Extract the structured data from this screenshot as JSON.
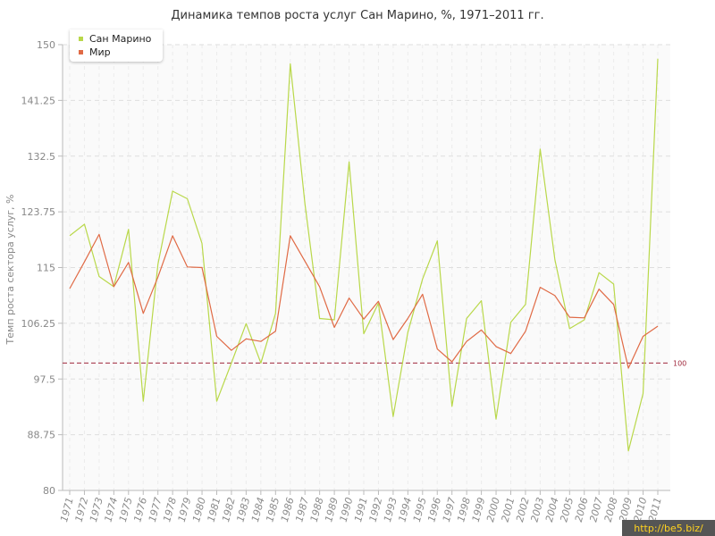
{
  "chart_data": {
    "type": "line",
    "title": "Динамика темпов роста услуг Сан Марино, %, 1971–2011 гг.",
    "ylabel": "Темп роста сектора услуг, %",
    "xlabel": "",
    "ylim": [
      80,
      150
    ],
    "yticks": [
      "80",
      "88.75",
      "97.5",
      "106.25",
      "115",
      "123.75",
      "132.5",
      "141.25",
      "150"
    ],
    "x": [
      "1971",
      "1972",
      "1973",
      "1974",
      "1975",
      "1976",
      "1977",
      "1978",
      "1979",
      "1980",
      "1981",
      "1982",
      "1983",
      "1984",
      "1985",
      "1986",
      "1987",
      "1988",
      "1989",
      "1990",
      "1991",
      "1992",
      "1993",
      "1994",
      "1995",
      "1996",
      "1997",
      "1998",
      "1999",
      "2000",
      "2001",
      "2002",
      "2003",
      "2004",
      "2005",
      "2006",
      "2007",
      "2008",
      "2009",
      "2010",
      "2011"
    ],
    "series": [
      {
        "name": "Сан Марино",
        "color": "#b9d84a",
        "values": [
          120,
          121.8,
          113.6,
          112,
          121,
          94,
          115.5,
          127,
          125.8,
          118.8,
          94,
          100,
          106.2,
          100,
          107.8,
          147,
          125,
          107,
          106.8,
          131.6,
          104.6,
          109.4,
          91.6,
          104.8,
          113.2,
          119.2,
          93.2,
          107,
          109.8,
          91.2,
          106.4,
          109.2,
          133.6,
          116.2,
          105.4,
          106.8,
          114.2,
          112.4,
          86.2,
          95.2,
          147.8
        ]
      },
      {
        "name": "Мир",
        "color": "#e06a45",
        "values": [
          111.7,
          115.9,
          120.2,
          112,
          115.8,
          107.8,
          113.5,
          120,
          115.1,
          115,
          104.2,
          102,
          103.8,
          103.4,
          105,
          120,
          116,
          112,
          105.6,
          110.2,
          106.9,
          109.7,
          103.7,
          107,
          110.8,
          102.2,
          100.2,
          103.4,
          105.2,
          102.6,
          101.5,
          105,
          111.9,
          110.6,
          107.2,
          107.1,
          111.6,
          109.2,
          99.2,
          104.2,
          105.8
        ]
      }
    ],
    "reference_line": {
      "value": 100,
      "label": "100",
      "color": "#a0283c"
    },
    "grid": true,
    "legend_position": "top-left"
  },
  "watermark": "http://be5.biz/"
}
